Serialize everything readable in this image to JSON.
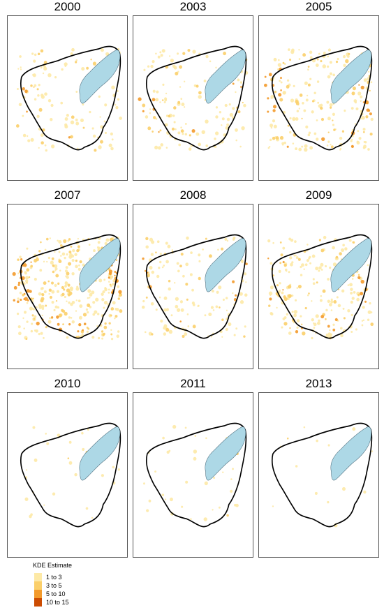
{
  "panels": [
    {
      "year": "2000",
      "levels": {
        "1 to 3": 90,
        "3 to 5": 20,
        "5 to 10": 4,
        "10 to 15": 0
      }
    },
    {
      "year": "2003",
      "levels": {
        "1 to 3": 110,
        "3 to 5": 25,
        "5 to 10": 8,
        "10 to 15": 0
      }
    },
    {
      "year": "2005",
      "levels": {
        "1 to 3": 150,
        "3 to 5": 50,
        "5 to 10": 25,
        "10 to 15": 0
      }
    },
    {
      "year": "2007",
      "levels": {
        "1 to 3": 220,
        "3 to 5": 90,
        "5 to 10": 45,
        "10 to 15": 0
      }
    },
    {
      "year": "2008",
      "levels": {
        "1 to 3": 110,
        "3 to 5": 25,
        "5 to 10": 10,
        "10 to 15": 0
      }
    },
    {
      "year": "2009",
      "levels": {
        "1 to 3": 170,
        "3 to 5": 45,
        "5 to 10": 15,
        "10 to 15": 0
      }
    },
    {
      "year": "2010",
      "levels": {
        "1 to 3": 25,
        "3 to 5": 2,
        "5 to 10": 0,
        "10 to 15": 0
      }
    },
    {
      "year": "2011",
      "levels": {
        "1 to 3": 35,
        "3 to 5": 3,
        "5 to 10": 0,
        "10 to 15": 0
      }
    },
    {
      "year": "2013",
      "levels": {
        "1 to 3": 15,
        "3 to 5": 1,
        "5 to 10": 0,
        "10 to 15": 0
      }
    }
  ],
  "legend": {
    "title": "KDE Estimate",
    "items": [
      {
        "label": "1 to 3",
        "color": "#fde9a6"
      },
      {
        "label": "3 to 5",
        "color": "#fbcf6a"
      },
      {
        "label": "5 to 10",
        "color": "#f39a2b"
      },
      {
        "label": "10 to 15",
        "color": "#cc4c02"
      }
    ]
  },
  "colors": {
    "boundary": "#000000",
    "lake_fill": "#add8e6",
    "lake_stroke": "#4a6a7a",
    "frame": "#555555"
  }
}
